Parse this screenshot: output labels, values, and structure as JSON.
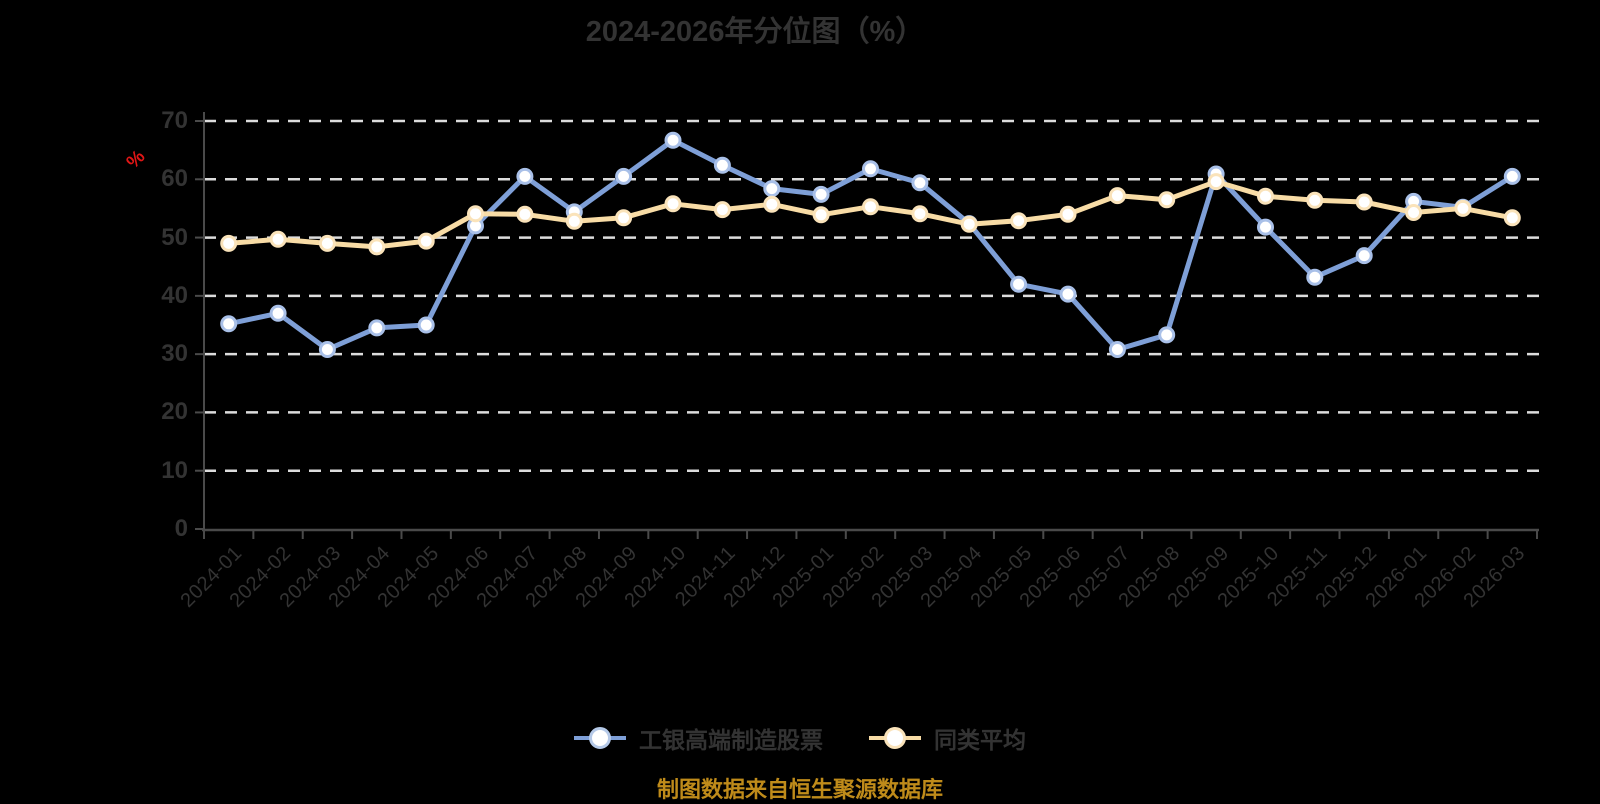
{
  "title": "2024-2026年分位图（%）",
  "y_unit_label": "%",
  "caption": "制图数据来自恒生聚源数据库",
  "legend": {
    "items": [
      {
        "label": "工银高端制造股票",
        "line_color": "#7e9fd7",
        "ring_color": "#b5c9e8"
      },
      {
        "label": "同类平均",
        "line_color": "#f8dca6",
        "ring_color": "#fae3ba"
      }
    ]
  },
  "colors": {
    "background": "#000000",
    "title": "#333333",
    "axis": "#4a4a4a",
    "grid": "#dcdcdc",
    "tick_label": "#333333",
    "unit_label": "#e01616",
    "caption": "#bf8b1a",
    "marker_fill": "#ffffff"
  },
  "chart_data": {
    "type": "line",
    "title": "2024-2026年分位图（%）",
    "ylabel": "%",
    "xlabel": "",
    "ylim": [
      0,
      70
    ],
    "y_ticks": [
      0,
      10,
      20,
      30,
      40,
      50,
      60,
      70
    ],
    "grid": "horizontal-dashed",
    "legend_position": "bottom",
    "categories": [
      "2024-01",
      "2024-02",
      "2024-03",
      "2024-04",
      "2024-05",
      "2024-06",
      "2024-07",
      "2024-08",
      "2024-09",
      "2024-10",
      "2024-11",
      "2024-12",
      "2025-01",
      "2025-02",
      "2025-03",
      "2025-04",
      "2025-05",
      "2025-06",
      "2025-07",
      "2025-08",
      "2025-09",
      "2025-10",
      "2025-11",
      "2025-12",
      "2026-01",
      "2026-02",
      "2026-03"
    ],
    "series": [
      {
        "name": "工银高端制造股票",
        "color": "#7e9fd7",
        "marker_ring": "#a9c0e8",
        "values": [
          35.2,
          37.0,
          30.8,
          34.5,
          35.0,
          52.0,
          60.5,
          54.4,
          60.5,
          66.7,
          62.4,
          58.4,
          57.4,
          61.8,
          59.4,
          52.4,
          42.0,
          40.3,
          30.8,
          33.3,
          60.9,
          51.8,
          43.2,
          46.9,
          56.2,
          55.2,
          60.5
        ]
      },
      {
        "name": "同类平均",
        "color": "#f8dca6",
        "marker_ring": "#fae3ba",
        "values": [
          49.0,
          49.7,
          49.0,
          48.4,
          49.4,
          54.1,
          54.0,
          52.8,
          53.4,
          55.8,
          54.8,
          55.7,
          53.9,
          55.3,
          54.1,
          52.3,
          52.9,
          54.0,
          57.2,
          56.5,
          59.6,
          57.1,
          56.4,
          56.1,
          54.3,
          55.0,
          53.4
        ]
      }
    ]
  }
}
